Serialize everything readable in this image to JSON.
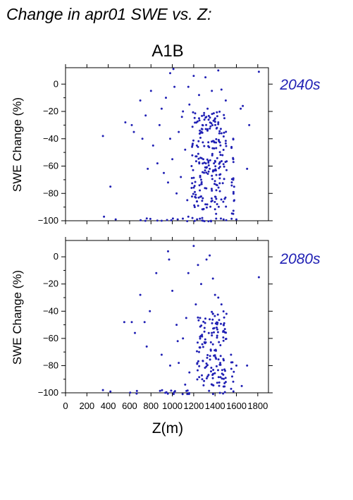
{
  "figure_title": "Change in apr01 SWE vs. Z:",
  "scenario": "A1B",
  "colors": {
    "points": "#2020b4",
    "period_label": "#2020b4"
  },
  "chart_data": [
    {
      "type": "scatter",
      "period": "2040s",
      "xlabel": "",
      "ylabel": "SWE Change (%)",
      "xlim": [
        0,
        1900
      ],
      "ylim": [
        -100,
        12
      ],
      "xticks": [],
      "yticks": [
        "0",
        "−20",
        "−40",
        "−60",
        "−80",
        "−100"
      ],
      "ytick_values": [
        0,
        -20,
        -40,
        -60,
        -80,
        -100
      ],
      "grid": false,
      "points": [
        [
          350,
          -38
        ],
        [
          420,
          -75
        ],
        [
          360,
          -97
        ],
        [
          470,
          -99
        ],
        [
          560,
          -28
        ],
        [
          620,
          -30
        ],
        [
          640,
          -35
        ],
        [
          700,
          -12
        ],
        [
          720,
          -40
        ],
        [
          750,
          -23
        ],
        [
          770,
          -62
        ],
        [
          800,
          -5
        ],
        [
          820,
          -45
        ],
        [
          860,
          -58
        ],
        [
          880,
          -30
        ],
        [
          900,
          -18
        ],
        [
          920,
          -65
        ],
        [
          940,
          -10
        ],
        [
          960,
          -72
        ],
        [
          980,
          -40
        ],
        [
          1000,
          -55
        ],
        [
          1020,
          -2
        ],
        [
          1040,
          -80
        ],
        [
          1060,
          -35
        ],
        [
          1080,
          -68
        ],
        [
          1100,
          -20
        ],
        [
          1120,
          -48
        ],
        [
          1140,
          -85
        ],
        [
          1160,
          -15
        ],
        [
          1180,
          -60
        ],
        [
          1210,
          -90
        ],
        [
          1230,
          -45
        ],
        [
          1250,
          -25
        ],
        [
          1270,
          -70
        ],
        [
          1290,
          -55
        ],
        [
          1310,
          -88
        ],
        [
          1330,
          -33
        ],
        [
          1350,
          -62
        ],
        [
          1370,
          -78
        ],
        [
          1390,
          -42
        ],
        [
          1410,
          -95
        ],
        [
          1430,
          -28
        ],
        [
          1450,
          -66
        ],
        [
          1470,
          -52
        ],
        [
          1490,
          -84
        ],
        [
          1570,
          -40
        ],
        [
          1570,
          -55
        ],
        [
          1570,
          -70
        ],
        [
          1580,
          -85
        ],
        [
          1570,
          -95
        ],
        [
          1640,
          -18
        ],
        [
          1700,
          -62
        ],
        [
          1720,
          -30
        ],
        [
          1810,
          9
        ],
        [
          1250,
          -8
        ],
        [
          1310,
          5
        ],
        [
          1430,
          10
        ],
        [
          1460,
          -4
        ],
        [
          1500,
          -12
        ],
        [
          1200,
          6
        ],
        [
          1010,
          11
        ],
        [
          980,
          8
        ],
        [
          1330,
          -18
        ],
        [
          1390,
          -58
        ],
        [
          1280,
          -98
        ],
        [
          1150,
          -97
        ],
        [
          1050,
          -99
        ],
        [
          900,
          -100
        ],
        [
          1480,
          -99
        ],
        [
          1600,
          -99
        ],
        [
          1660,
          -16
        ],
        [
          1370,
          -5
        ],
        [
          1150,
          -2
        ],
        [
          1090,
          -24
        ],
        [
          1240,
          -46
        ],
        [
          1180,
          -76
        ],
        [
          1340,
          -64
        ],
        [
          1420,
          -74
        ],
        [
          1460,
          -36
        ],
        [
          1300,
          -26
        ]
      ],
      "dense_bands": [
        {
          "x": [
            600,
            1530
          ],
          "y": [
            -101,
            -98
          ]
        },
        {
          "x": [
            1180,
            1510
          ],
          "y": [
            -92,
            -20
          ]
        },
        {
          "x": [
            1550,
            1580
          ],
          "y": [
            -99,
            -36
          ]
        }
      ]
    },
    {
      "type": "scatter",
      "period": "2080s",
      "xlabel": "Z(m)",
      "ylabel": "SWE Change (%)",
      "xlim": [
        0,
        1900
      ],
      "ylim": [
        -100,
        12
      ],
      "xticks": [
        "0",
        "200",
        "400",
        "600",
        "800",
        "1000",
        "1200",
        "1400",
        "1600",
        "1800"
      ],
      "xtick_values": [
        0,
        200,
        400,
        600,
        800,
        1000,
        1200,
        1400,
        1600,
        1800
      ],
      "yticks": [
        "0",
        "−20",
        "−40",
        "−60",
        "−80",
        "−100"
      ],
      "ytick_values": [
        0,
        -20,
        -40,
        -60,
        -80,
        -100
      ],
      "grid": false,
      "points": [
        [
          350,
          -98
        ],
        [
          420,
          -99
        ],
        [
          550,
          -48
        ],
        [
          620,
          -48
        ],
        [
          650,
          -56
        ],
        [
          700,
          -28
        ],
        [
          740,
          -48
        ],
        [
          760,
          -66
        ],
        [
          790,
          -40
        ],
        [
          850,
          -12
        ],
        [
          900,
          -72
        ],
        [
          960,
          4
        ],
        [
          970,
          -2
        ],
        [
          1000,
          -25
        ],
        [
          1040,
          -50
        ],
        [
          1060,
          -78
        ],
        [
          1100,
          -60
        ],
        [
          1130,
          -45
        ],
        [
          1160,
          -85
        ],
        [
          1200,
          8
        ],
        [
          1220,
          -35
        ],
        [
          1250,
          -70
        ],
        [
          1270,
          -20
        ],
        [
          1300,
          -55
        ],
        [
          1330,
          -88
        ],
        [
          1350,
          1
        ],
        [
          1380,
          -42
        ],
        [
          1410,
          -75
        ],
        [
          1430,
          -30
        ],
        [
          1450,
          -65
        ],
        [
          1480,
          -50
        ],
        [
          1500,
          -92
        ],
        [
          1550,
          -72
        ],
        [
          1560,
          -88
        ],
        [
          1600,
          -80
        ],
        [
          1650,
          -95
        ],
        [
          1700,
          -80
        ],
        [
          1810,
          -15
        ],
        [
          1150,
          -12
        ],
        [
          1260,
          -45
        ],
        [
          1320,
          -2
        ],
        [
          1400,
          -28
        ],
        [
          1460,
          -35
        ],
        [
          1380,
          -16
        ],
        [
          1240,
          -6
        ],
        [
          1050,
          -62
        ],
        [
          980,
          -80
        ],
        [
          1120,
          -94
        ],
        [
          1280,
          -90
        ],
        [
          1420,
          -58
        ]
      ],
      "dense_bands": [
        {
          "x": [
            600,
            1530
          ],
          "y": [
            -101,
            -98
          ]
        },
        {
          "x": [
            1230,
            1510
          ],
          "y": [
            -96,
            -40
          ]
        },
        {
          "x": [
            1550,
            1580
          ],
          "y": [
            -99,
            -70
          ]
        }
      ]
    }
  ]
}
